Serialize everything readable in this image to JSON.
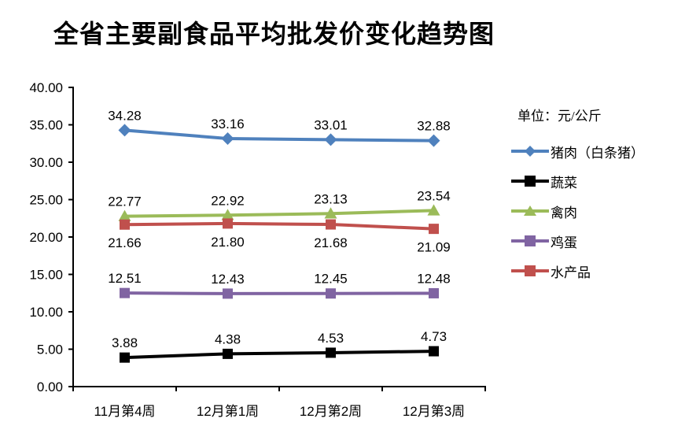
{
  "title": "全省主要副食品平均批发价变化趋势图",
  "legend": {
    "unit_label": "单位：元/公斤",
    "position": "right"
  },
  "chart_data": {
    "type": "line",
    "categories": [
      "11月第4周",
      "12月第1周",
      "12月第2周",
      "12月第3周"
    ],
    "series": [
      {
        "name": "猪肉（白条猪）",
        "values": [
          34.28,
          33.16,
          33.01,
          32.88
        ],
        "labels": [
          "34.28",
          "33.16",
          "33.01",
          "32.88"
        ],
        "color": "#4F81BD",
        "marker": "diamond",
        "label_side": "above"
      },
      {
        "name": "蔬菜",
        "values": [
          3.88,
          4.38,
          4.53,
          4.73
        ],
        "labels": [
          "3.88",
          "4.38",
          "4.53",
          "4.73"
        ],
        "color": "#000000",
        "marker": "square",
        "label_side": "above"
      },
      {
        "name": "禽肉",
        "values": [
          22.77,
          22.92,
          23.13,
          23.54
        ],
        "labels": [
          "22.77",
          "22.92",
          "23.13",
          "23.54"
        ],
        "color": "#9BBB59",
        "marker": "triangle",
        "label_side": "above"
      },
      {
        "name": "鸡蛋",
        "values": [
          12.51,
          12.43,
          12.45,
          12.48
        ],
        "labels": [
          "12.51",
          "12.43",
          "12.45",
          "12.48"
        ],
        "color": "#8064A2",
        "marker": "square",
        "label_side": "above"
      },
      {
        "name": "水产品",
        "values": [
          21.66,
          21.8,
          21.68,
          21.09
        ],
        "labels": [
          "21.66",
          "21.80",
          "21.68",
          "21.09"
        ],
        "color": "#C0504D",
        "marker": "square",
        "label_side": "below"
      }
    ],
    "ylim": [
      0,
      40
    ],
    "ytick_step": 5,
    "ytick_labels": [
      "0.00",
      "5.00",
      "10.00",
      "15.00",
      "20.00",
      "25.00",
      "30.00",
      "35.00",
      "40.00"
    ],
    "grid": false,
    "legend_position": "right",
    "axis_color": "#000000"
  }
}
